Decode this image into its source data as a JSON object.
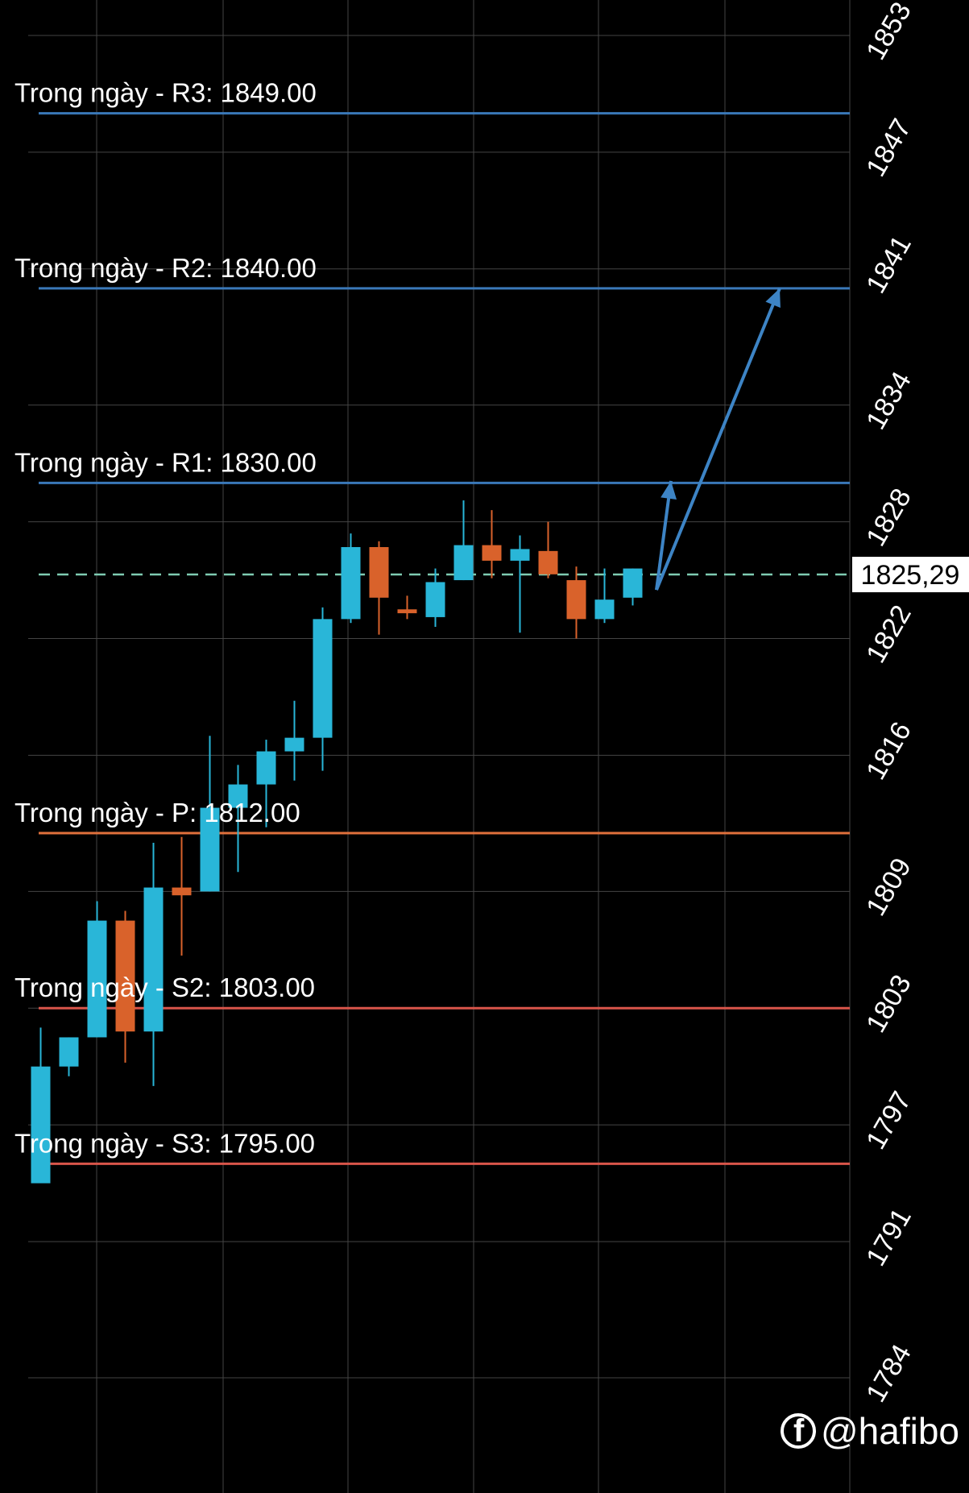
{
  "chart_data": {
    "type": "candlestick",
    "ylim": [
      1781,
      1856
    ],
    "y_ticks": [
      1853,
      1847,
      1841,
      1834,
      1828,
      1822,
      1816,
      1809,
      1803,
      1797,
      1791,
      1784
    ],
    "y_tick_labels": [
      "1853",
      "1847",
      "1841",
      "1834",
      "1828",
      "1822",
      "1816",
      "1809",
      "1803",
      "1797",
      "1791",
      "1784"
    ],
    "current_price": 1825.29,
    "current_price_label": "1825,29",
    "levels": [
      {
        "label": "Trong ngày - R3: 1849.00",
        "value": 1849.0,
        "color": "#3a78b8"
      },
      {
        "label": "Trong ngày - R2: 1840.00",
        "value": 1840.0,
        "color": "#3a78b8"
      },
      {
        "label": "Trong ngày - R1: 1830.00",
        "value": 1830.0,
        "color": "#3a78b8"
      },
      {
        "label": "Trong ngày - P: 1812.00",
        "value": 1812.0,
        "color": "#e0703c"
      },
      {
        "label": "Trong ngày - S2: 1803.00",
        "value": 1803.0,
        "color": "#d9554a"
      },
      {
        "label": "Trong ngày - S3: 1795.00",
        "value": 1795.0,
        "color": "#d9554a"
      }
    ],
    "candles": [
      {
        "open": 1794.0,
        "close": 1800.0,
        "high": 1802.0,
        "low": 1794.0
      },
      {
        "open": 1800.0,
        "close": 1801.5,
        "high": 1801.5,
        "low": 1799.5
      },
      {
        "open": 1801.5,
        "close": 1807.5,
        "high": 1808.5,
        "low": 1801.5
      },
      {
        "open": 1807.5,
        "close": 1801.8,
        "high": 1808.0,
        "low": 1800.2
      },
      {
        "open": 1801.8,
        "close": 1809.2,
        "high": 1811.5,
        "low": 1799.0
      },
      {
        "open": 1809.2,
        "close": 1808.8,
        "high": 1811.8,
        "low": 1805.7
      },
      {
        "open": 1809.0,
        "close": 1813.3,
        "high": 1817.0,
        "low": 1809.0
      },
      {
        "open": 1813.3,
        "close": 1814.5,
        "high": 1815.5,
        "low": 1810.0
      },
      {
        "open": 1814.5,
        "close": 1816.2,
        "high": 1816.8,
        "low": 1812.3
      },
      {
        "open": 1816.2,
        "close": 1816.9,
        "high": 1818.8,
        "low": 1814.7
      },
      {
        "open": 1816.9,
        "close": 1823.0,
        "high": 1823.6,
        "low": 1815.2
      },
      {
        "open": 1823.0,
        "close": 1826.7,
        "high": 1827.4,
        "low": 1822.8
      },
      {
        "open": 1826.7,
        "close": 1824.1,
        "high": 1827.0,
        "low": 1822.2
      },
      {
        "open": 1823.5,
        "close": 1823.3,
        "high": 1824.2,
        "low": 1823.0
      },
      {
        "open": 1823.1,
        "close": 1824.9,
        "high": 1825.6,
        "low": 1822.6
      },
      {
        "open": 1825.0,
        "close": 1826.8,
        "high": 1829.1,
        "low": 1825.0
      },
      {
        "open": 1826.8,
        "close": 1826.0,
        "high": 1828.6,
        "low": 1825.1
      },
      {
        "open": 1826.0,
        "close": 1826.6,
        "high": 1827.3,
        "low": 1822.3
      },
      {
        "open": 1826.5,
        "close": 1825.3,
        "high": 1828.0,
        "low": 1825.1
      },
      {
        "open": 1825.0,
        "close": 1823.0,
        "high": 1825.7,
        "low": 1822.0
      },
      {
        "open": 1823.0,
        "close": 1824.0,
        "high": 1825.6,
        "low": 1822.8
      },
      {
        "open": 1824.1,
        "close": 1825.6,
        "high": 1825.6,
        "low": 1823.7
      }
    ]
  },
  "colors": {
    "bull": "#29b6d8",
    "bear": "#d9622b",
    "grid": "#444444",
    "current_line": "#7ecbb2",
    "arrow": "#3d84c5"
  },
  "watermark": {
    "icon": "facebook-icon",
    "text": "@hafibo"
  }
}
